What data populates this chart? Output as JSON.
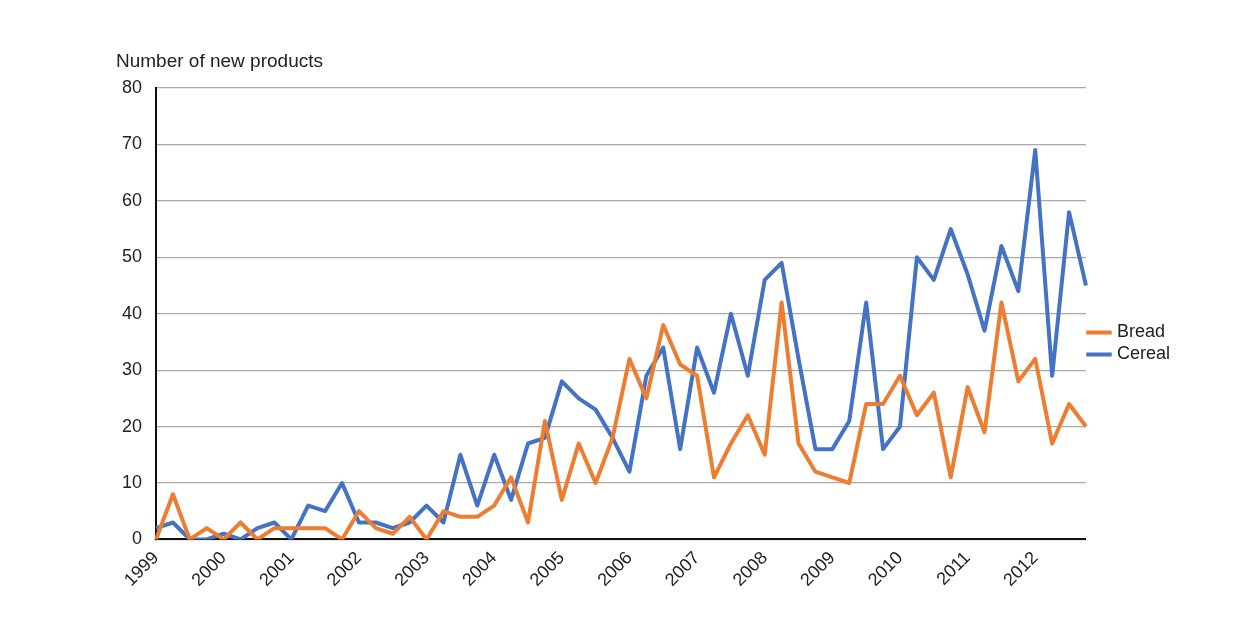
{
  "chart_data": {
    "type": "line",
    "ylabel": "Number of new products",
    "categories": [
      "1999",
      null,
      null,
      null,
      "2000",
      null,
      null,
      null,
      "2001",
      null,
      null,
      null,
      "2002",
      null,
      null,
      null,
      "2003",
      null,
      null,
      null,
      "2004",
      null,
      null,
      null,
      "2005",
      null,
      null,
      null,
      "2006",
      null,
      null,
      null,
      "2007",
      null,
      null,
      null,
      "2008",
      null,
      null,
      null,
      "2009",
      null,
      null,
      null,
      "2010",
      null,
      null,
      null,
      "2011",
      null,
      null,
      null,
      "2012",
      null,
      null,
      null
    ],
    "series": [
      {
        "name": "Bread",
        "color": "#ed7d31",
        "values": [
          0,
          8,
          0,
          2,
          0,
          3,
          0,
          2,
          2,
          2,
          2,
          0,
          5,
          2,
          1,
          4,
          0,
          5,
          4,
          4,
          6,
          11,
          3,
          21,
          7,
          17,
          10,
          18,
          32,
          25,
          38,
          31,
          29,
          11,
          17,
          22,
          15,
          42,
          17,
          12,
          11,
          10,
          24,
          24,
          29,
          22,
          26,
          11,
          27,
          19,
          42,
          28,
          32,
          17,
          24,
          20
        ]
      },
      {
        "name": "Cereal",
        "color": "#4472c4",
        "values": [
          2,
          3,
          0,
          0,
          1,
          0,
          2,
          3,
          0,
          6,
          5,
          10,
          3,
          3,
          2,
          3,
          6,
          3,
          15,
          6,
          15,
          7,
          17,
          18,
          28,
          25,
          23,
          18,
          12,
          29,
          34,
          16,
          34,
          26,
          40,
          29,
          46,
          49,
          32,
          16,
          16,
          21,
          42,
          16,
          20,
          50,
          46,
          55,
          47,
          37,
          52,
          44,
          69,
          29,
          58,
          45
        ]
      }
    ],
    "ylim": [
      0,
      80
    ],
    "yticks": [
      0,
      10,
      20,
      30,
      40,
      50,
      60,
      70,
      80
    ],
    "grid": "y",
    "legend": "right",
    "marker": "none",
    "line_style": "solid"
  }
}
